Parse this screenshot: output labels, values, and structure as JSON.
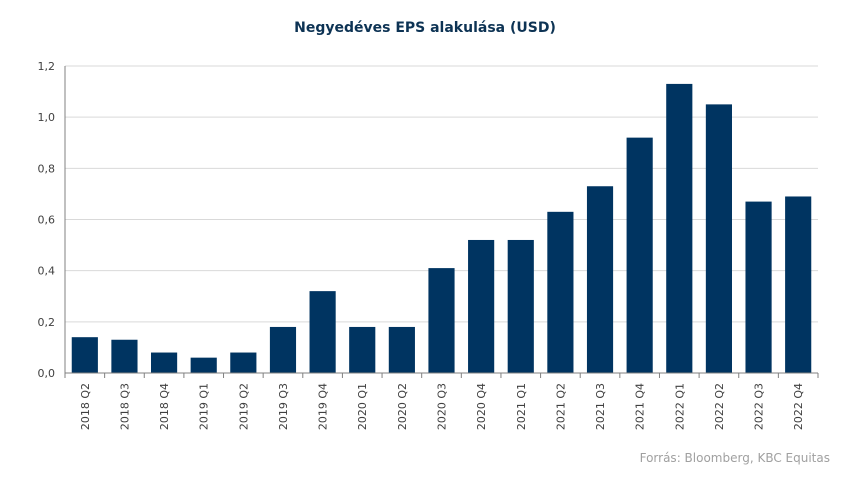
{
  "chart_data": {
    "type": "bar",
    "title": "Negyedéves EPS alakulása (USD)",
    "xlabel": "",
    "ylabel": "",
    "categories": [
      "2018 Q2",
      "2018 Q3",
      "2018 Q4",
      "2019 Q1",
      "2019 Q2",
      "2019 Q3",
      "2019 Q4",
      "2020 Q1",
      "2020 Q2",
      "2020 Q3",
      "2020 Q4",
      "2021 Q1",
      "2021 Q2",
      "2021 Q3",
      "2021 Q4",
      "2022 Q1",
      "2022 Q2",
      "2022 Q3",
      "2022 Q4"
    ],
    "values": [
      0.14,
      0.13,
      0.08,
      0.06,
      0.08,
      0.18,
      0.32,
      0.18,
      0.18,
      0.41,
      0.52,
      0.52,
      0.63,
      0.73,
      0.92,
      1.13,
      1.05,
      0.67,
      0.69
    ],
    "ylim": [
      0,
      1.2
    ],
    "yticks": [
      0,
      0.2,
      0.4,
      0.6,
      0.8,
      1.0,
      1.2
    ],
    "ytick_labels": [
      "0,0",
      "0,2",
      "0,4",
      "0,6",
      "0,8",
      "1,0",
      "1,2"
    ],
    "grid": true,
    "bar_color": "#003461",
    "legend": "none"
  },
  "source": "Forrás: Bloomberg,  KBC Equitas"
}
